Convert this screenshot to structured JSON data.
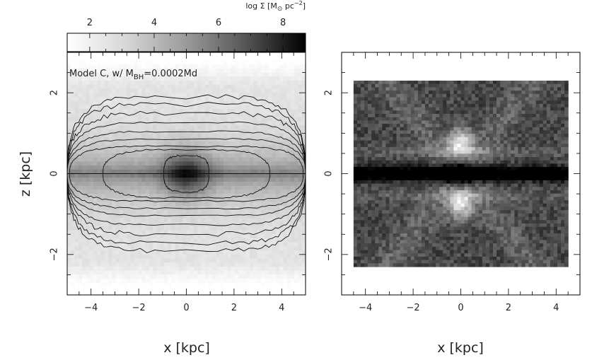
{
  "chart_data": [
    {
      "type": "heatmap",
      "annotation": {
        "main": "Model C, w/ M",
        "sub": "BH",
        "rest": "=0.0002Md"
      },
      "xlabel": "x  [kpc]",
      "ylabel": "z  [kpc]",
      "xlim": [
        -5,
        5
      ],
      "ylim": [
        -3,
        3
      ],
      "xticks": [
        -4,
        -2,
        0,
        2,
        4
      ],
      "xtick_labels": [
        "−4",
        "−2",
        "0",
        "2",
        "4"
      ],
      "yticks": [
        -2,
        0,
        2
      ],
      "ytick_labels": [
        "−2",
        "0",
        "2"
      ],
      "colorbar": {
        "label_main": "log Σ [M",
        "label_sub": "⊙",
        "label_mid": " pc",
        "label_sup": "−2",
        "label_end": "]",
        "range": [
          1.3,
          8.7
        ],
        "ticks": [
          2,
          4,
          6,
          8
        ],
        "tick_labels": [
          "2",
          "4",
          "6",
          "8"
        ],
        "placement": "top"
      },
      "contour_half_widths_kpc": [
        0.95,
        3.5,
        4.9,
        5.0,
        5.0,
        5.0,
        5.0,
        5.0,
        5.0
      ],
      "contour_half_heights_kpc": [
        0.45,
        0.6,
        0.75,
        0.95,
        1.15,
        1.4,
        1.65,
        1.9,
        2.1
      ]
    },
    {
      "type": "heatmap",
      "xlabel": "x  [kpc]",
      "xlim": [
        -5,
        5
      ],
      "ylim": [
        -3,
        3
      ],
      "xticks": [
        -4,
        -2,
        0,
        2,
        4
      ],
      "xtick_labels": [
        "−4",
        "−2",
        "0",
        "2",
        "4"
      ],
      "yticks": [
        -2,
        0,
        2
      ],
      "ytick_labels": [
        "−2",
        "0",
        "2"
      ],
      "data_extent": {
        "x": [
          -4.5,
          4.5
        ],
        "y": [
          -2.3,
          2.3
        ]
      },
      "bright_spots_kpc": [
        [
          0,
          0.78
        ],
        [
          0,
          -0.78
        ]
      ],
      "dark_midplane_z_kpc": 0
    }
  ]
}
